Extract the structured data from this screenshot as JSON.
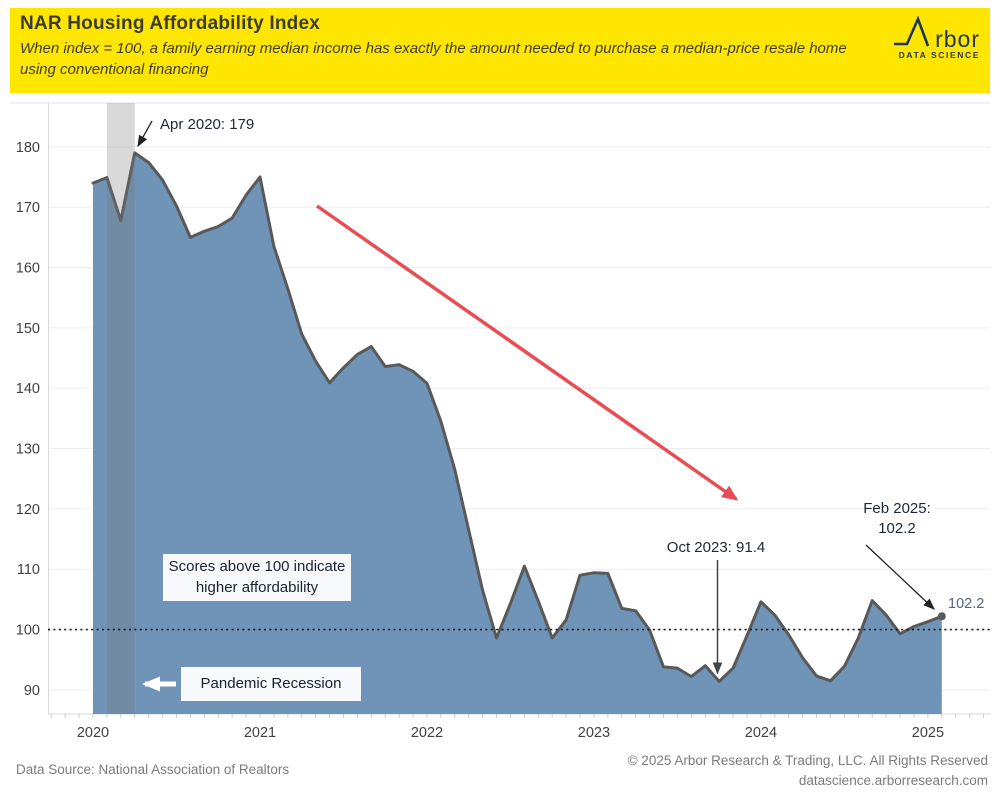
{
  "header": {
    "title": "NAR Housing Affordability Index",
    "subtitle": "When index = 100, a family earning median income has exactly the amount needed to purchase a median-price resale home using conventional financing",
    "logo": {
      "brand": "Arbor",
      "tagline": "DATA SCIENCE"
    }
  },
  "colors": {
    "banner": "#FFE600",
    "area_fill": "#7093B8",
    "line": "#595959",
    "band": "rgba(120,120,120,0.28)",
    "trend_arrow": "#E84C55",
    "annotation_text": "#1F2733",
    "latest_value_text": "#55657A",
    "logo_navy": "#1E3458",
    "axis_text": "#414141"
  },
  "chart_data": {
    "type": "area",
    "title": "NAR Housing Affordability Index",
    "xlabel": "",
    "ylabel": "",
    "ylim": [
      86,
      187
    ],
    "grid": "horizontal",
    "legend": "none",
    "yticks": [
      90,
      100,
      110,
      120,
      130,
      140,
      150,
      160,
      170,
      180
    ],
    "xticks": [
      "2020",
      "2021",
      "2022",
      "2023",
      "2024",
      "2025"
    ],
    "x": [
      "2020-01",
      "2020-02",
      "2020-03",
      "2020-04",
      "2020-05",
      "2020-06",
      "2020-07",
      "2020-08",
      "2020-09",
      "2020-10",
      "2020-11",
      "2020-12",
      "2021-01",
      "2021-02",
      "2021-03",
      "2021-04",
      "2021-05",
      "2021-06",
      "2021-07",
      "2021-08",
      "2021-09",
      "2021-10",
      "2021-11",
      "2021-12",
      "2022-01",
      "2022-02",
      "2022-03",
      "2022-04",
      "2022-05",
      "2022-06",
      "2022-07",
      "2022-08",
      "2022-09",
      "2022-10",
      "2022-11",
      "2022-12",
      "2023-01",
      "2023-02",
      "2023-03",
      "2023-04",
      "2023-05",
      "2023-06",
      "2023-07",
      "2023-08",
      "2023-09",
      "2023-10",
      "2023-11",
      "2023-12",
      "2024-01",
      "2024-02",
      "2024-03",
      "2024-04",
      "2024-05",
      "2024-06",
      "2024-07",
      "2024-08",
      "2024-09",
      "2024-10",
      "2024-11",
      "2024-12",
      "2025-01",
      "2025-02"
    ],
    "values": [
      174.0,
      174.9,
      167.8,
      179.0,
      177.4,
      174.5,
      170.2,
      165.0,
      166.0,
      166.8,
      168.2,
      172.0,
      175.0,
      163.5,
      156.5,
      149.0,
      144.5,
      140.9,
      143.4,
      145.6,
      146.9,
      143.6,
      143.9,
      142.8,
      140.8,
      134.5,
      126.5,
      116.5,
      106.5,
      98.6,
      104.3,
      110.5,
      104.7,
      98.6,
      101.6,
      109.0,
      109.4,
      109.3,
      103.5,
      103.1,
      99.9,
      93.8,
      93.6,
      92.2,
      94.0,
      91.4,
      93.6,
      99.0,
      104.6,
      102.4,
      99.1,
      95.3,
      92.3,
      91.5,
      93.9,
      98.6,
      104.8,
      102.4,
      99.3,
      100.5,
      101.3,
      102.2
    ],
    "reference_line": {
      "value": 100,
      "style": "dotted"
    },
    "recession_band": {
      "start": "2020-02",
      "end": "2020-04"
    },
    "annotations": [
      {
        "id": "apr_2020_peak",
        "label": "Apr 2020: 179",
        "date": "2020-04",
        "value": 179
      },
      {
        "id": "oct_2023_low",
        "label": "Oct 2023: 91.4",
        "date": "2023-10",
        "value": 91.4
      },
      {
        "id": "feb_2025_latest",
        "label_lines": [
          "Feb 2025:",
          "102.2"
        ],
        "date": "2025-02",
        "value": 102.2
      },
      {
        "id": "latest_value_label",
        "label": "102.2"
      }
    ],
    "callouts": [
      {
        "id": "scores_note",
        "text": "Scores above 100 indicate higher affordability"
      },
      {
        "id": "recession_label",
        "text": "Pandemic Recession"
      }
    ]
  },
  "footer": {
    "source": "Data Source: National Association of Realtors",
    "copyright": "© 2025 Arbor Research & Trading, LLC. All Rights Reserved",
    "website": "datascience.arborresearch.com"
  }
}
